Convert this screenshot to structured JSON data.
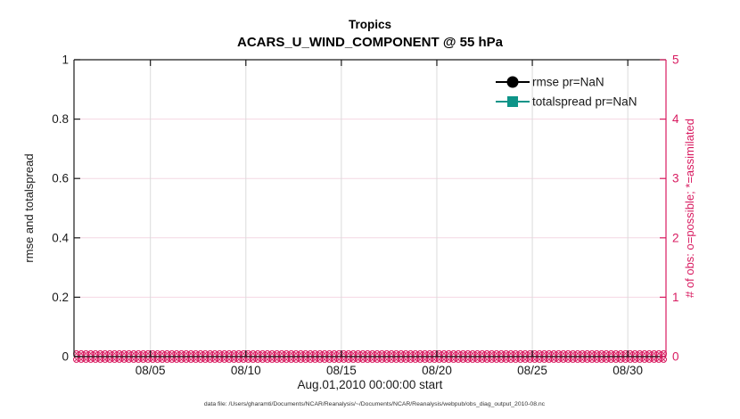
{
  "colors": {
    "pink": "#D81B60",
    "pink_grid": "#F4D7E2",
    "gray_grid": "#DBDBDB",
    "teal": "#0D9488",
    "black": "#1A1A1A",
    "footer_gray": "#333333"
  },
  "footer": {
    "text": "data file: /Users/gharamti/Documents/NCAR/Reanalysis/~/Documents/NCAR/Reanalysis/webpub/obs_diag_output_2010-08.nc"
  },
  "chart_data": {
    "type": "line",
    "title": "Tropics",
    "subtitle": "ACARS_U_WIND_COMPONENT @ 55 hPa",
    "xlabel": "Aug.01,2010 00:00:00 start",
    "ylabel_left": "rmse and totalspread",
    "ylabel_right": "# of obs: o=possible; *=assimilated",
    "x_range_days": 31,
    "x_ticks": {
      "labels": [
        "08/05",
        "08/10",
        "08/15",
        "08/20",
        "08/25",
        "08/30"
      ],
      "day_index": [
        4,
        9,
        14,
        19,
        24,
        29
      ]
    },
    "y_left": {
      "min": 0,
      "max": 1,
      "values": [
        0,
        0.2,
        0.4,
        0.6,
        0.8,
        1
      ],
      "labels": [
        "0",
        "0.2",
        "0.4",
        "0.6",
        "0.8",
        "1"
      ]
    },
    "y_right": {
      "min": 0,
      "max": 5,
      "values": [
        0,
        1,
        2,
        3,
        4,
        5
      ],
      "labels": [
        "0",
        "1",
        "2",
        "3",
        "4",
        "5"
      ]
    },
    "grid": {
      "vertical": true,
      "horizontal": true
    },
    "legend": {
      "position": "top-right-inside",
      "entries": [
        {
          "label": "rmse pr=NaN",
          "marker": "circle",
          "color": "#000000"
        },
        {
          "label": "totalspread pr=NaN",
          "marker": "square",
          "color": "#0D9488"
        }
      ]
    },
    "series": [
      {
        "name": "rmse pr=NaN",
        "marker": "circle",
        "color": "#000000",
        "values": "NaN",
        "note": "no curve plotted (all NaN)"
      },
      {
        "name": "totalspread pr=NaN",
        "marker": "square",
        "color": "#0D9488",
        "values": "NaN",
        "note": "no curve plotted (all NaN)"
      }
    ],
    "obs_counts": {
      "axis": "right",
      "marker_possible": "o",
      "marker_assimilated": "*",
      "possible_per_bin": 0,
      "assimilated_per_bin": 0,
      "n_bins": 124
    }
  }
}
